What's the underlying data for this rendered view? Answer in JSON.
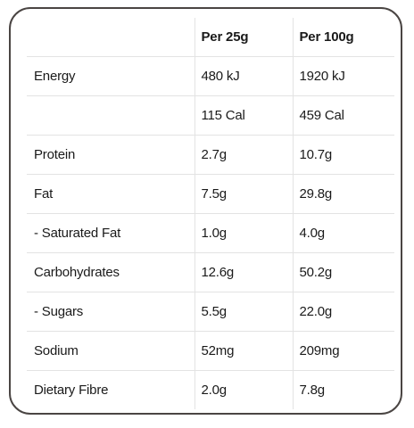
{
  "table": {
    "headers": [
      "",
      "Per 25g",
      "Per 100g"
    ],
    "rows": [
      {
        "label": "Energy",
        "per25": "480 kJ",
        "per100": "1920 kJ"
      },
      {
        "label": "",
        "per25": "115 Cal",
        "per100": "459 Cal"
      },
      {
        "label": "Protein",
        "per25": "2.7g",
        "per100": "10.7g"
      },
      {
        "label": "Fat",
        "per25": "7.5g",
        "per100": "29.8g"
      },
      {
        "label": "- Saturated Fat",
        "per25": "1.0g",
        "per100": "4.0g"
      },
      {
        "label": "Carbohydrates",
        "per25": "12.6g",
        "per100": "50.2g"
      },
      {
        "label": "- Sugars",
        "per25": "5.5g",
        "per100": "22.0g"
      },
      {
        "label": "Sodium",
        "per25": "52mg",
        "per100": "209mg"
      },
      {
        "label": "Dietary Fibre",
        "per25": "2.0g",
        "per100": "7.8g"
      }
    ]
  },
  "colors": {
    "border": "#4a4543",
    "divider": "#e3e3e3",
    "text": "#1a1a1a"
  }
}
